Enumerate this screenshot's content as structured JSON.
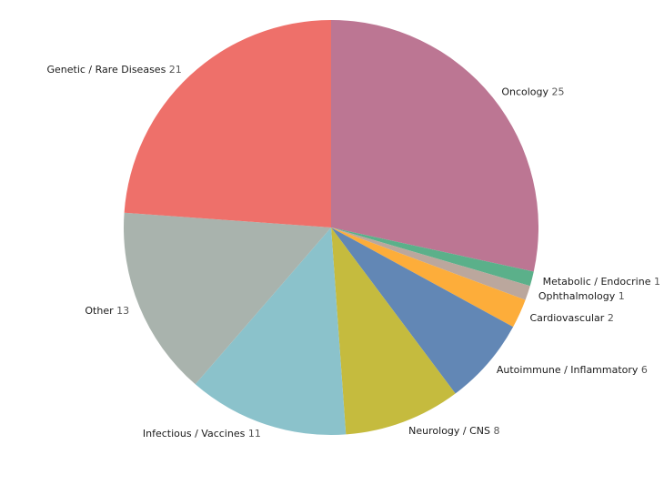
{
  "chart_data": {
    "type": "pie",
    "start_angle_deg": 0,
    "direction": "clockwise",
    "slices": [
      {
        "label": "Oncology",
        "value": 25,
        "color": "#bc7693"
      },
      {
        "label": "Metabolic / Endocrine",
        "value": 1,
        "color": "#5bb08a"
      },
      {
        "label": "Ophthalmology",
        "value": 1,
        "color": "#bba79d"
      },
      {
        "label": "Cardiovascular",
        "value": 2,
        "color": "#fdad3a"
      },
      {
        "label": "Autoimmune / Inflammatory",
        "value": 6,
        "color": "#6287b5"
      },
      {
        "label": "Neurology / CNS",
        "value": 8,
        "color": "#c5bb3e"
      },
      {
        "label": "Infectious / Vaccines",
        "value": 11,
        "color": "#8bc2cb"
      },
      {
        "label": "Other",
        "value": 13,
        "color": "#a9b3ad"
      },
      {
        "label": "Genetic / Rare Diseases",
        "value": 21,
        "color": "#ee706a"
      }
    ]
  }
}
